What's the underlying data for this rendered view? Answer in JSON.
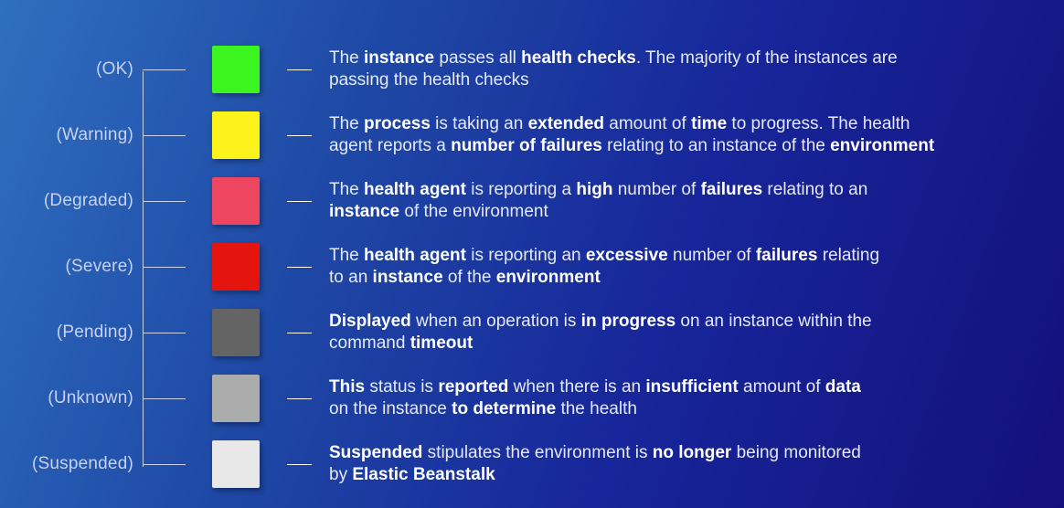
{
  "statuses": [
    {
      "label": "(OK)",
      "color": "#3df51e",
      "lines": [
        [
          {
            "t": "The ",
            "b": false
          },
          {
            "t": "instance",
            "b": true
          },
          {
            "t": " passes all ",
            "b": false
          },
          {
            "t": "health checks",
            "b": true
          },
          {
            "t": ". The majority of the instances are",
            "b": false
          }
        ],
        [
          {
            "t": "passing the health checks",
            "b": false
          }
        ]
      ]
    },
    {
      "label": "(Warning)",
      "color": "#fbf31b",
      "lines": [
        [
          {
            "t": "The ",
            "b": false
          },
          {
            "t": "process",
            "b": true
          },
          {
            "t": " is taking an ",
            "b": false
          },
          {
            "t": "extended",
            "b": true
          },
          {
            "t": " amount of ",
            "b": false
          },
          {
            "t": "time",
            "b": true
          },
          {
            "t": " to progress. The health",
            "b": false
          }
        ],
        [
          {
            "t": "agent reports a ",
            "b": false
          },
          {
            "t": "number of failures",
            "b": true
          },
          {
            "t": " relating to an instance of the ",
            "b": false
          },
          {
            "t": "environment",
            "b": true
          }
        ]
      ]
    },
    {
      "label": "(Degraded)",
      "color": "#ee4661",
      "lines": [
        [
          {
            "t": "The ",
            "b": false
          },
          {
            "t": "health agent",
            "b": true
          },
          {
            "t": " is reporting a ",
            "b": false
          },
          {
            "t": "high",
            "b": true
          },
          {
            "t": " number of ",
            "b": false
          },
          {
            "t": "failures",
            "b": true
          },
          {
            "t": " relating to an",
            "b": false
          }
        ],
        [
          {
            "t": "instance",
            "b": true
          },
          {
            "t": " of the environment",
            "b": false
          }
        ]
      ]
    },
    {
      "label": "(Severe)",
      "color": "#e3150e",
      "lines": [
        [
          {
            "t": "The ",
            "b": false
          },
          {
            "t": "health agent",
            "b": true
          },
          {
            "t": " is reporting an ",
            "b": false
          },
          {
            "t": "excessive",
            "b": true
          },
          {
            "t": " number of ",
            "b": false
          },
          {
            "t": "failures",
            "b": true
          },
          {
            "t": " relating",
            "b": false
          }
        ],
        [
          {
            "t": "to an ",
            "b": false
          },
          {
            "t": "instance",
            "b": true
          },
          {
            "t": " of the ",
            "b": false
          },
          {
            "t": "environment",
            "b": true
          }
        ]
      ]
    },
    {
      "label": "(Pending)",
      "color": "#646464",
      "lines": [
        [
          {
            "t": "Displayed",
            "b": true
          },
          {
            "t": " when an operation is ",
            "b": false
          },
          {
            "t": "in progress",
            "b": true
          },
          {
            "t": " on an instance within the",
            "b": false
          }
        ],
        [
          {
            "t": "command ",
            "b": false
          },
          {
            "t": "timeout",
            "b": true
          }
        ]
      ]
    },
    {
      "label": "(Unknown)",
      "color": "#acacac",
      "lines": [
        [
          {
            "t": "This",
            "b": true
          },
          {
            "t": " status is ",
            "b": false
          },
          {
            "t": "reported",
            "b": true
          },
          {
            "t": " when there is an ",
            "b": false
          },
          {
            "t": "insufficient",
            "b": true
          },
          {
            "t": " amount of ",
            "b": false
          },
          {
            "t": "data",
            "b": true
          }
        ],
        [
          {
            "t": "on the instance ",
            "b": false
          },
          {
            "t": "to determine",
            "b": true
          },
          {
            "t": " the health",
            "b": false
          }
        ]
      ]
    },
    {
      "label": "(Suspended)",
      "color": "#e8e8e8",
      "lines": [
        [
          {
            "t": "Suspended",
            "b": true
          },
          {
            "t": " stipulates the environment is ",
            "b": false
          },
          {
            "t": "no longer",
            "b": true
          },
          {
            "t": " being monitored",
            "b": false
          }
        ],
        [
          {
            "t": "by ",
            "b": false
          },
          {
            "t": "Elastic Beanstalk",
            "b": true
          }
        ]
      ]
    }
  ]
}
